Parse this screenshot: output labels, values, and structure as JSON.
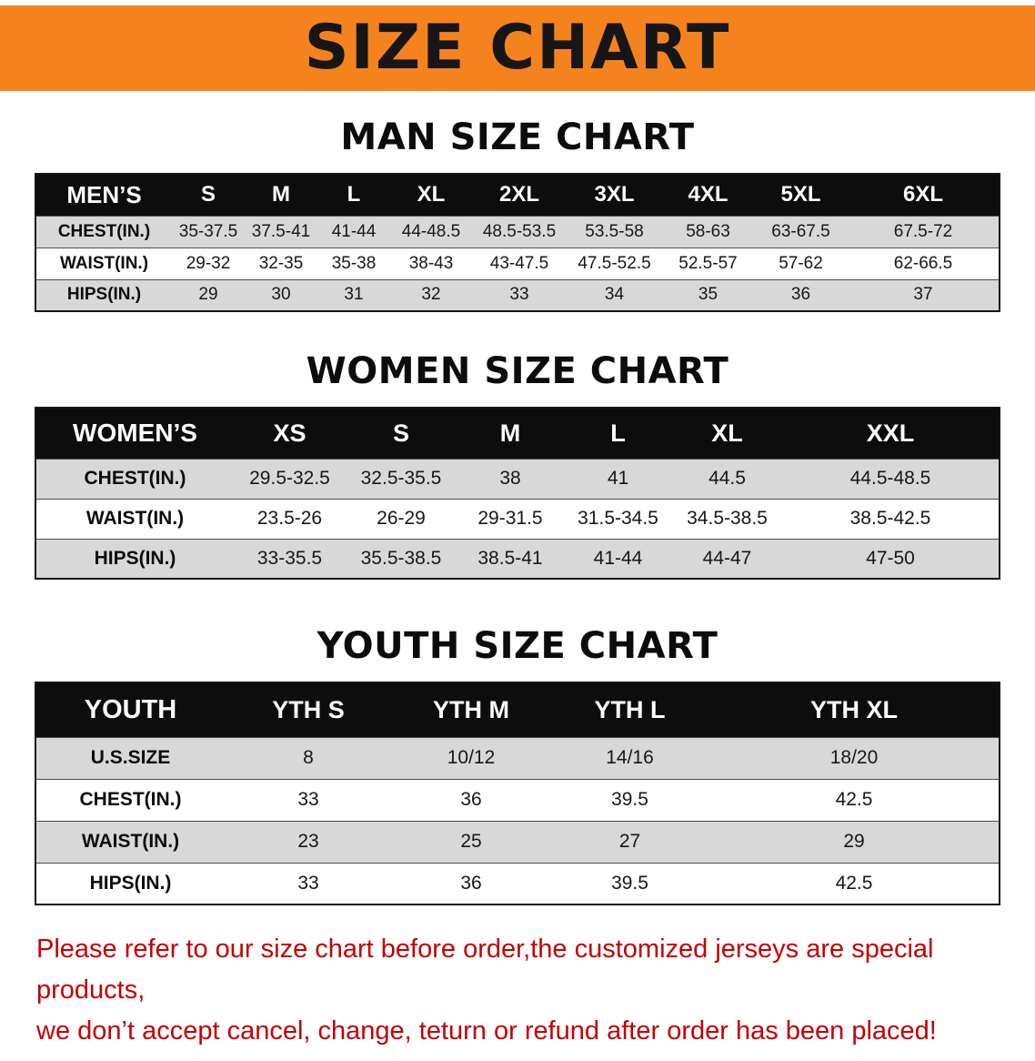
{
  "banner": {
    "title": "SIZE CHART"
  },
  "colors": {
    "banner_bg": "#f5831d",
    "banner_text": "#161616",
    "table_header_bg": "#0d0d0d",
    "table_header_text": "#ffffff",
    "row_shade": "#d8d8d8",
    "note_text": "#c40000"
  },
  "men": {
    "heading": "MAN SIZE CHART",
    "table": {
      "header": [
        "MEN’S",
        "S",
        "M",
        "L",
        "XL",
        "2XL",
        "3XL",
        "4XL",
        "5XL",
        "6XL"
      ],
      "rows": [
        {
          "label": "CHEST(IN.)",
          "values": [
            "35-37.5",
            "37.5-41",
            "41-44",
            "44-48.5",
            "48.5-53.5",
            "53.5-58",
            "58-63",
            "63-67.5",
            "67.5-72"
          ]
        },
        {
          "label": "WAIST(IN.)",
          "values": [
            "29-32",
            "32-35",
            "35-38",
            "38-43",
            "43-47.5",
            "47.5-52.5",
            "52.5-57",
            "57-62",
            "62-66.5"
          ]
        },
        {
          "label": "HIPS(IN.)",
          "values": [
            "29",
            "30",
            "31",
            "32",
            "33",
            "34",
            "35",
            "36",
            "37"
          ]
        }
      ]
    }
  },
  "women": {
    "heading": "WOMEN SIZE CHART",
    "table": {
      "header": [
        "WOMEN’S",
        "XS",
        "S",
        "M",
        "L",
        "XL",
        "XXL"
      ],
      "rows": [
        {
          "label": "CHEST(IN.)",
          "values": [
            "29.5-32.5",
            "32.5-35.5",
            "38",
            "41",
            "44.5",
            "44.5-48.5"
          ]
        },
        {
          "label": "WAIST(IN.)",
          "values": [
            "23.5-26",
            "26-29",
            "29-31.5",
            "31.5-34.5",
            "34.5-38.5",
            "38.5-42.5"
          ]
        },
        {
          "label": "HIPS(IN.)",
          "values": [
            "33-35.5",
            "35.5-38.5",
            "38.5-41",
            "41-44",
            "44-47",
            "47-50"
          ]
        }
      ]
    }
  },
  "youth": {
    "heading": "YOUTH SIZE CHART",
    "table": {
      "header": [
        "YOUTH",
        "YTH S",
        "YTH M",
        "YTH L",
        "YTH XL"
      ],
      "rows": [
        {
          "label": "U.S.SIZE",
          "values": [
            "8",
            "10/12",
            "14/16",
            "18/20"
          ]
        },
        {
          "label": "CHEST(IN.)",
          "values": [
            "33",
            "36",
            "39.5",
            "42.5"
          ]
        },
        {
          "label": "WAIST(IN.)",
          "values": [
            "23",
            "25",
            "27",
            "29"
          ]
        },
        {
          "label": "HIPS(IN.)",
          "values": [
            "33",
            "36",
            "39.5",
            "42.5"
          ]
        }
      ]
    }
  },
  "note": {
    "line1": "Please refer to our size chart before order,the customized jerseys are special products,",
    "line2": "we don’t accept cancel, change, teturn or refund after order has been placed!"
  }
}
